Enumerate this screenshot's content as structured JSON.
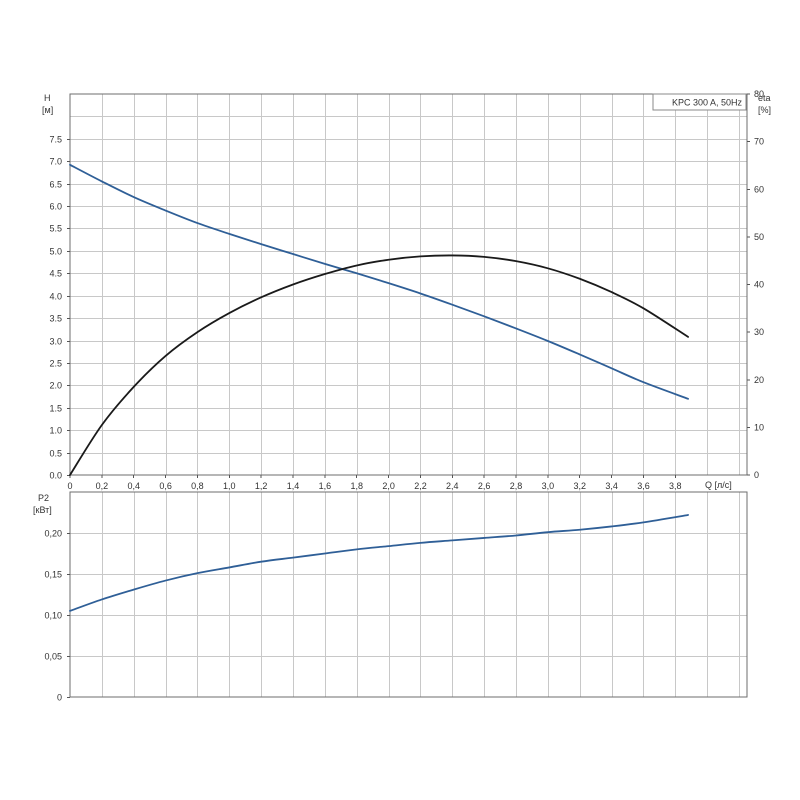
{
  "chart_data": [
    {
      "type": "line",
      "title": "",
      "legend_box": "KPC 300 A, 50Hz",
      "xlabel": "Q [л/с]",
      "ylabel": "H",
      "ylabel_unit": "[м]",
      "y2label": "eta",
      "y2label_unit": "[%]",
      "xlim": [
        0,
        4.25
      ],
      "ylim": [
        0,
        8.5
      ],
      "y2lim": [
        0,
        80
      ],
      "x_ticks": [
        "0",
        "0,2",
        "0,4",
        "0,6",
        "0,8",
        "1,0",
        "1,2",
        "1,4",
        "1,6",
        "1,8",
        "2,0",
        "2,2",
        "2,4",
        "2,6",
        "2,8",
        "3,0",
        "3,2",
        "3,4",
        "3,6",
        "3,8"
      ],
      "y_ticks": [
        "0.0",
        "0.5",
        "1.0",
        "1.5",
        "2.0",
        "2.5",
        "3.0",
        "3.5",
        "4.0",
        "4.5",
        "5.0",
        "5.5",
        "6.0",
        "6.5",
        "7.0",
        "7.5"
      ],
      "y2_ticks": [
        "0",
        "10",
        "20",
        "30",
        "40",
        "50",
        "60",
        "70",
        "80"
      ],
      "grid": true,
      "series": [
        {
          "axis": "y",
          "color": "#2f5f97",
          "x": [
            0,
            0.2,
            0.4,
            0.6,
            0.8,
            1.0,
            1.2,
            1.4,
            1.6,
            1.8,
            2.0,
            2.2,
            2.4,
            2.6,
            2.8,
            3.0,
            3.2,
            3.4,
            3.6,
            3.88
          ],
          "values": [
            6.92,
            6.55,
            6.2,
            5.9,
            5.62,
            5.38,
            5.15,
            4.93,
            4.71,
            4.5,
            4.28,
            4.05,
            3.8,
            3.54,
            3.27,
            2.99,
            2.69,
            2.38,
            2.07,
            1.7
          ]
        },
        {
          "axis": "y2",
          "color": "#1a1a1a",
          "x": [
            0,
            0.2,
            0.4,
            0.6,
            0.8,
            1.0,
            1.2,
            1.4,
            1.6,
            1.8,
            2.0,
            2.2,
            2.4,
            2.6,
            2.8,
            3.0,
            3.2,
            3.4,
            3.6,
            3.88
          ],
          "values": [
            0,
            10.5,
            18.5,
            25,
            30,
            34,
            37.3,
            40,
            42.2,
            44,
            45.2,
            45.9,
            46.1,
            45.8,
            44.9,
            43.4,
            41.2,
            38.4,
            35,
            29
          ]
        }
      ]
    },
    {
      "type": "line",
      "title": "",
      "ylabel": "P2",
      "ylabel_unit": "[кВт]",
      "xlim": [
        0,
        4.25
      ],
      "ylim": [
        0,
        0.25
      ],
      "y_ticks": [
        "0",
        "0,05",
        "0,10",
        "0,15",
        "0,20"
      ],
      "grid": true,
      "series": [
        {
          "axis": "y",
          "color": "#2f5f97",
          "x": [
            0,
            0.2,
            0.4,
            0.6,
            0.8,
            1.0,
            1.2,
            1.4,
            1.6,
            1.8,
            2.0,
            2.2,
            2.4,
            2.6,
            2.8,
            3.0,
            3.2,
            3.4,
            3.6,
            3.88
          ],
          "values": [
            0.105,
            0.119,
            0.131,
            0.142,
            0.151,
            0.158,
            0.165,
            0.17,
            0.175,
            0.18,
            0.184,
            0.188,
            0.191,
            0.194,
            0.197,
            0.201,
            0.204,
            0.208,
            0.213,
            0.222
          ]
        }
      ]
    }
  ]
}
